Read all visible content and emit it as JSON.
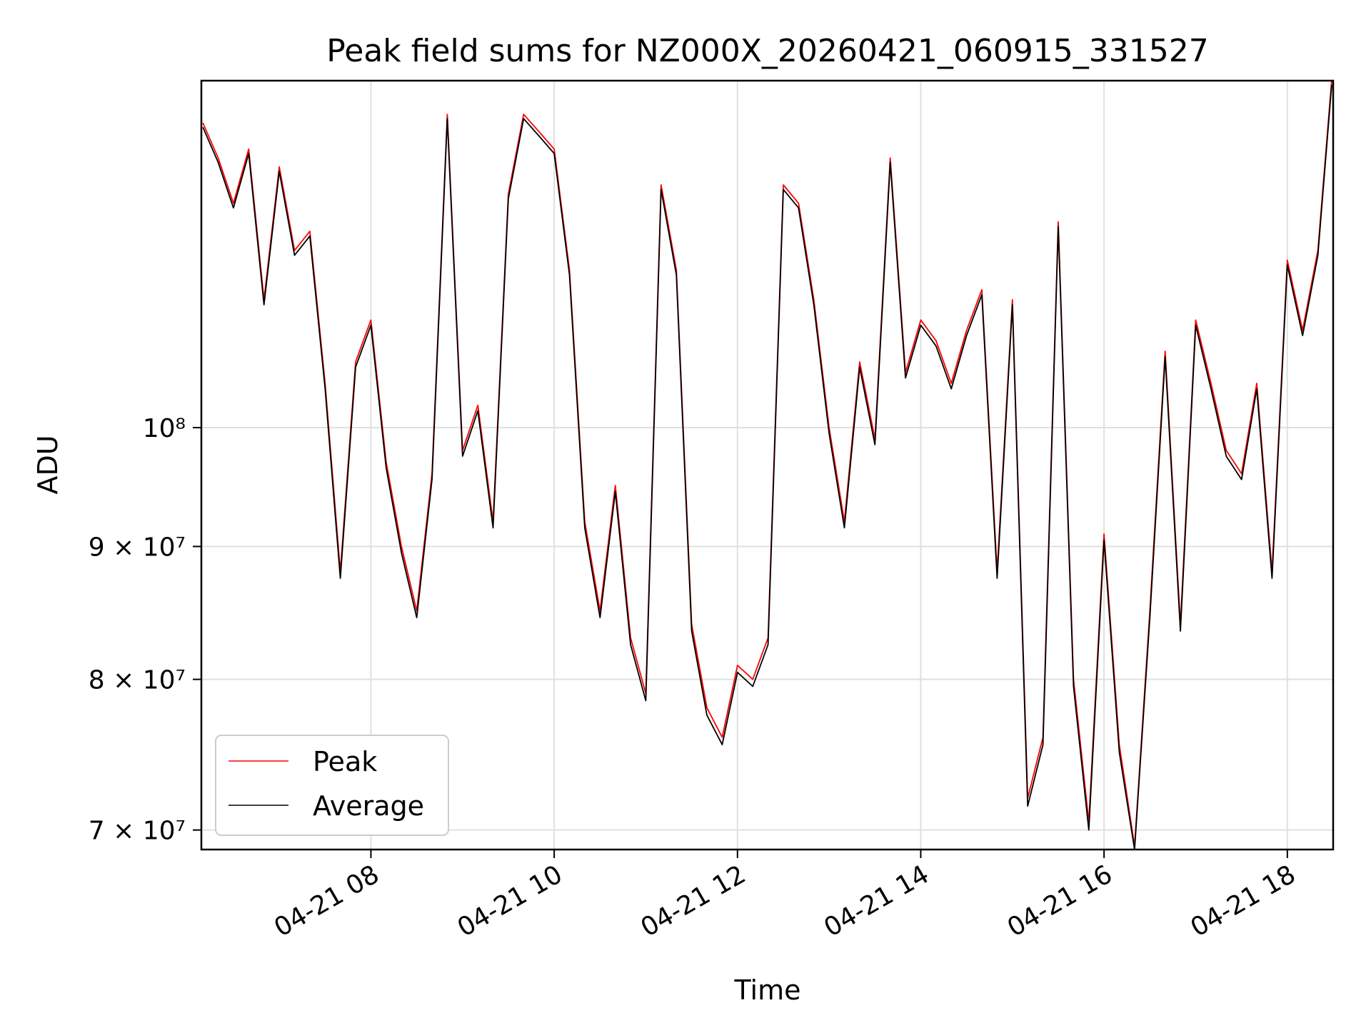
{
  "chart_data": {
    "type": "line",
    "title": "Peak field sums for NZ000X_20260421_060915_331527",
    "xlabel": "Time",
    "ylabel": "ADU",
    "yscale": "log",
    "xlim": [
      "2026-04-21 06:09",
      "2026-04-21 18:30"
    ],
    "ylim": [
      68800000,
      136000000
    ],
    "grid": true,
    "legend_position": "lower-left",
    "x_ticks": [
      {
        "value": "2026-04-21 08:00",
        "label": "04-21 08"
      },
      {
        "value": "2026-04-21 10:00",
        "label": "04-21 10"
      },
      {
        "value": "2026-04-21 12:00",
        "label": "04-21 12"
      },
      {
        "value": "2026-04-21 14:00",
        "label": "04-21 14"
      },
      {
        "value": "2026-04-21 16:00",
        "label": "04-21 16"
      },
      {
        "value": "2026-04-21 18:00",
        "label": "04-21 18"
      }
    ],
    "y_ticks": [
      {
        "value": 70000000,
        "label": "7 × 10⁷"
      },
      {
        "value": 80000000,
        "label": "8 × 10⁷"
      },
      {
        "value": 90000000,
        "label": "9 × 10⁷"
      },
      {
        "value": 100000000,
        "label": "10⁸"
      }
    ],
    "x": [
      "2026-04-21 06:10",
      "2026-04-21 06:20",
      "2026-04-21 06:30",
      "2026-04-21 06:40",
      "2026-04-21 06:50",
      "2026-04-21 07:00",
      "2026-04-21 07:10",
      "2026-04-21 07:20",
      "2026-04-21 07:30",
      "2026-04-21 07:40",
      "2026-04-21 07:50",
      "2026-04-21 08:00",
      "2026-04-21 08:10",
      "2026-04-21 08:20",
      "2026-04-21 08:30",
      "2026-04-21 08:40",
      "2026-04-21 08:50",
      "2026-04-21 09:00",
      "2026-04-21 09:10",
      "2026-04-21 09:20",
      "2026-04-21 09:30",
      "2026-04-21 09:40",
      "2026-04-21 09:50",
      "2026-04-21 10:00",
      "2026-04-21 10:10",
      "2026-04-21 10:20",
      "2026-04-21 10:30",
      "2026-04-21 10:40",
      "2026-04-21 10:50",
      "2026-04-21 11:00",
      "2026-04-21 11:10",
      "2026-04-21 11:20",
      "2026-04-21 11:30",
      "2026-04-21 11:40",
      "2026-04-21 11:50",
      "2026-04-21 12:00",
      "2026-04-21 12:10",
      "2026-04-21 12:20",
      "2026-04-21 12:30",
      "2026-04-21 12:40",
      "2026-04-21 12:50",
      "2026-04-21 13:00",
      "2026-04-21 13:10",
      "2026-04-21 13:20",
      "2026-04-21 13:30",
      "2026-04-21 13:40",
      "2026-04-21 13:50",
      "2026-04-21 14:00",
      "2026-04-21 14:10",
      "2026-04-21 14:20",
      "2026-04-21 14:30",
      "2026-04-21 14:40",
      "2026-04-21 14:50",
      "2026-04-21 15:00",
      "2026-04-21 15:10",
      "2026-04-21 15:20",
      "2026-04-21 15:30",
      "2026-04-21 15:40",
      "2026-04-21 15:50",
      "2026-04-21 16:00",
      "2026-04-21 16:10",
      "2026-04-21 16:20",
      "2026-04-21 16:30",
      "2026-04-21 16:40",
      "2026-04-21 16:50",
      "2026-04-21 17:00",
      "2026-04-21 17:10",
      "2026-04-21 17:20",
      "2026-04-21 17:30",
      "2026-04-21 17:40",
      "2026-04-21 17:50",
      "2026-04-21 18:00",
      "2026-04-21 18:10",
      "2026-04-21 18:20",
      "2026-04-21 18:29"
    ],
    "series": [
      {
        "name": "Peak",
        "color": "#ff0000",
        "values": [
          131000000,
          127000000,
          122000000,
          128000000,
          112000000,
          126000000,
          117000000,
          119000000,
          104000000,
          88000000,
          106000000,
          110000000,
          97000000,
          90000000,
          85000000,
          96000000,
          132000000,
          98000000,
          102000000,
          92000000,
          123000000,
          132000000,
          130000000,
          128000000,
          115000000,
          92000000,
          85000000,
          95000000,
          83000000,
          79000000,
          124000000,
          115000000,
          84000000,
          78000000,
          76000000,
          81000000,
          80000000,
          83000000,
          124000000,
          122000000,
          112000000,
          100000000,
          92000000,
          106000000,
          99000000,
          127000000,
          105000000,
          110000000,
          108000000,
          104000000,
          109000000,
          113000000,
          88000000,
          112000000,
          72000000,
          76000000,
          120000000,
          80000000,
          70500000,
          91000000,
          75500000,
          69000000,
          85000000,
          107000000,
          84000000,
          110000000,
          104000000,
          98000000,
          96000000,
          104000000,
          88000000,
          116000000,
          109000000,
          117000000,
          136000000
        ]
      },
      {
        "name": "Average",
        "color": "#000000",
        "values": [
          130500000,
          126500000,
          121500000,
          127500000,
          111500000,
          125500000,
          116500000,
          118500000,
          103500000,
          87500000,
          105500000,
          109500000,
          96500000,
          89500000,
          84500000,
          95500000,
          131500000,
          97500000,
          101500000,
          91500000,
          122500000,
          131500000,
          129500000,
          127500000,
          114500000,
          91500000,
          84500000,
          94500000,
          82500000,
          78500000,
          123500000,
          114500000,
          83500000,
          77500000,
          75500000,
          80500000,
          79500000,
          82500000,
          123500000,
          121500000,
          111500000,
          99500000,
          91500000,
          105500000,
          98500000,
          126500000,
          104500000,
          109500000,
          107500000,
          103500000,
          108500000,
          112500000,
          87500000,
          111500000,
          71500000,
          75500000,
          119500000,
          79500000,
          70000000,
          90500000,
          75000000,
          68800000,
          84500000,
          106500000,
          83500000,
          109500000,
          103500000,
          97500000,
          95500000,
          103500000,
          87500000,
          115500000,
          108500000,
          116500000,
          135500000
        ]
      }
    ]
  }
}
